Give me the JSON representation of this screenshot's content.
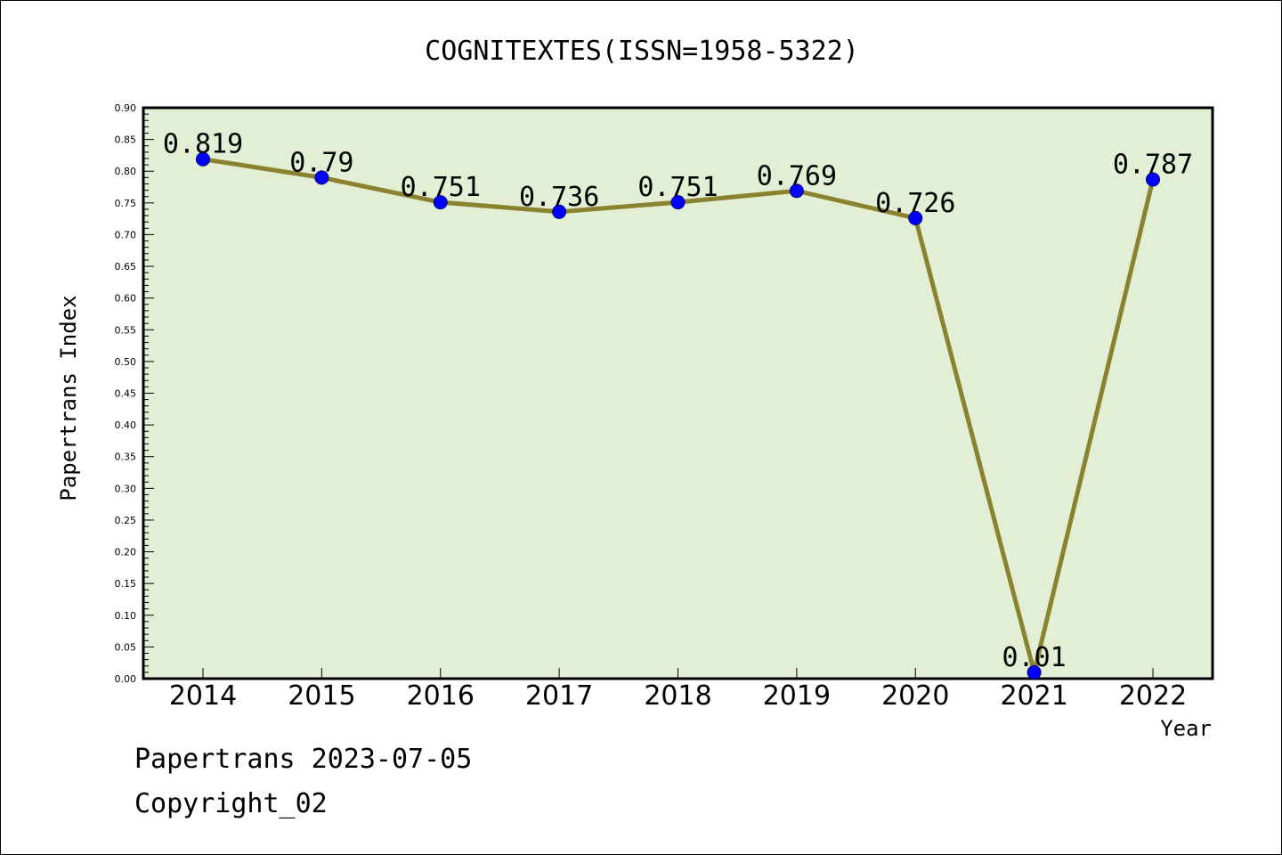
{
  "chart_data": {
    "type": "line",
    "title": "COGNITEXTES(ISSN=1958-5322)",
    "xlabel": "Year",
    "ylabel": "Papertrans Index",
    "categories": [
      "2014",
      "2015",
      "2016",
      "2017",
      "2018",
      "2019",
      "2020",
      "2021",
      "2022"
    ],
    "series": [
      {
        "values": [
          0.819,
          0.79,
          0.751,
          0.736,
          0.751,
          0.769,
          0.726,
          0.01,
          0.787
        ],
        "labels": [
          "0.819",
          "0.79",
          "0.751",
          "0.736",
          "0.751",
          "0.769",
          "0.726",
          "0.01",
          "0.787"
        ]
      }
    ],
    "ylim": [
      0,
      0.9
    ],
    "yticks": [
      "0.00",
      "0.05",
      "0.10",
      "0.15",
      "0.20",
      "0.25",
      "0.30",
      "0.35",
      "0.40",
      "0.45",
      "0.50",
      "0.55",
      "0.60",
      "0.65",
      "0.70",
      "0.75",
      "0.80",
      "0.85",
      "0.90"
    ],
    "grid": false,
    "colors": {
      "plot_background": "#e2efd4",
      "line": "#8b8230",
      "marker": "#0000ff"
    }
  },
  "footer": {
    "source": "Papertrans 2023-07-05",
    "copyright": "Copyright_02"
  }
}
